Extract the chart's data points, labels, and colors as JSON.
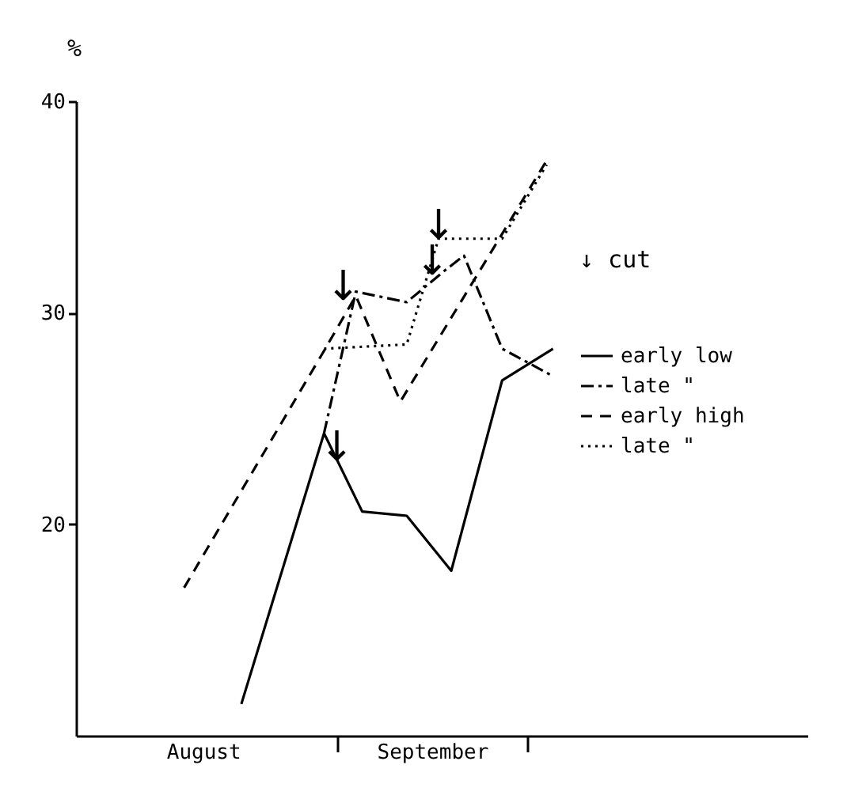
{
  "chart_data": {
    "type": "line",
    "ylabel": "%",
    "xlim": [
      "--07-22",
      "--11-14"
    ],
    "xticks": [
      {
        "value": "--08-11",
        "label": "August"
      },
      {
        "value": "--09-01",
        "label": null
      },
      {
        "value": "--09-16",
        "label": "September"
      },
      {
        "value": "--10-01",
        "label": null
      }
    ],
    "ylim": [
      10,
      40
    ],
    "yticks": [
      20,
      30,
      40
    ],
    "series": [
      {
        "name": "early low",
        "color": "#000000",
        "line_style": "solid",
        "x": [
          "--08-17",
          "--08-30",
          "--09-05",
          "--09-12",
          "--09-19",
          "--09-27",
          "--10-05"
        ],
        "values": [
          11.5,
          24.3,
          20.6,
          20.4,
          17.8,
          26.8,
          28.3
        ]
      },
      {
        "name": "late   \"",
        "color": "#000000",
        "line_style": "dashdot",
        "x": [
          "--08-30",
          "--09-04",
          "--09-12",
          "--09-18",
          "--09-21",
          "--09-27",
          "--10-05"
        ],
        "values": [
          24.3,
          31.0,
          30.5,
          32.0,
          32.7,
          28.3,
          27.0
        ]
      },
      {
        "name": "early high",
        "color": "#000000",
        "line_style": "dashed",
        "x": [
          "--08-08",
          "--08-30",
          "--09-04",
          "--09-11",
          "--10-04"
        ],
        "values": [
          17.0,
          28.2,
          30.8,
          25.8,
          37.2
        ]
      },
      {
        "name": "late   \"",
        "color": "#000000",
        "line_style": "dotted",
        "x": [
          "--08-30",
          "--09-12",
          "--09-17",
          "--09-27",
          "--10-04"
        ],
        "values": [
          28.3,
          28.5,
          33.5,
          33.5,
          37.0
        ]
      }
    ],
    "annotations": [
      "↓ cut",
      {
        "text": "↓",
        "x": "--09-02",
        "y": 30.6
      },
      {
        "text": "↓",
        "x": "--09-01",
        "y": 23.0
      },
      {
        "text": "↓",
        "x": "--09-16",
        "y": 31.8
      },
      {
        "text": "↓",
        "x": "--09-17",
        "y": 33.5
      }
    ],
    "grid": false,
    "legend": "right",
    "marker": "none"
  }
}
